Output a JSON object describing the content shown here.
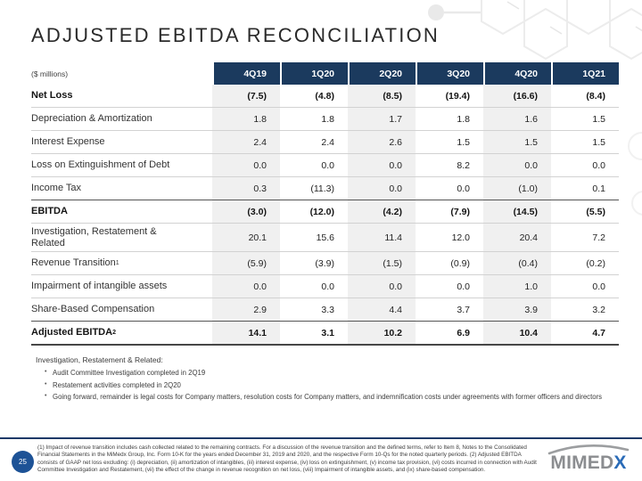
{
  "slide": {
    "title": "ADJUSTED EBITDA RECONCILIATION",
    "units_label": "($ millions)",
    "page_number": "25",
    "logo": {
      "text_gray": "MIMED",
      "text_blue": "X"
    },
    "colors": {
      "header_navy": "#1b3a5e",
      "column_stripe": "#f0f0f0",
      "footer_line_navy": "#1e3968",
      "page_circle_blue": "#1d5296",
      "logo_gray": "#8b8d90",
      "logo_blue": "#2b6cb8"
    }
  },
  "table": {
    "columns": [
      "4Q19",
      "1Q20",
      "2Q20",
      "3Q20",
      "4Q20",
      "1Q21"
    ],
    "rows": [
      {
        "label": "Net Loss",
        "bold": true,
        "values": [
          "(7.5)",
          "(4.8)",
          "(8.5)",
          "(19.4)",
          "(16.6)",
          "(8.4)"
        ]
      },
      {
        "label": "Depreciation & Amortization",
        "values": [
          "1.8",
          "1.8",
          "1.7",
          "1.8",
          "1.6",
          "1.5"
        ]
      },
      {
        "label": "Interest Expense",
        "values": [
          "2.4",
          "2.4",
          "2.6",
          "1.5",
          "1.5",
          "1.5"
        ]
      },
      {
        "label": "Loss on Extinguishment of Debt",
        "values": [
          "0.0",
          "0.0",
          "0.0",
          "8.2",
          "0.0",
          "0.0"
        ]
      },
      {
        "label": "Income Tax",
        "values": [
          "0.3",
          "(11.3)",
          "0.0",
          "0.0",
          "(1.0)",
          "0.1"
        ]
      },
      {
        "label": "EBITDA",
        "bold": true,
        "top_dark": true,
        "values": [
          "(3.0)",
          "(12.0)",
          "(4.2)",
          "(7.9)",
          "(14.5)",
          "(5.5)"
        ]
      },
      {
        "label": "Investigation, Restatement & Related",
        "values": [
          "20.1",
          "15.6",
          "11.4",
          "12.0",
          "20.4",
          "7.2"
        ]
      },
      {
        "label": "Revenue Transition",
        "sup": "1",
        "values": [
          "(5.9)",
          "(3.9)",
          "(1.5)",
          "(0.9)",
          "(0.4)",
          "(0.2)"
        ]
      },
      {
        "label": "Impairment of intangible assets",
        "values": [
          "0.0",
          "0.0",
          "0.0",
          "0.0",
          "1.0",
          "0.0"
        ]
      },
      {
        "label": "Share-Based Compensation",
        "values": [
          "2.9",
          "3.3",
          "4.4",
          "3.7",
          "3.9",
          "3.2"
        ]
      },
      {
        "label": "Adjusted EBITDA",
        "sup": "2",
        "bold": true,
        "top_dark": true,
        "bottom_dark": true,
        "values": [
          "14.1",
          "3.1",
          "10.2",
          "6.9",
          "10.4",
          "4.7"
        ]
      }
    ]
  },
  "notes": {
    "heading": "Investigation, Restatement & Related:",
    "bullets": [
      "Audit Committee Investigation completed in 2Q19",
      "Restatement activities completed in 2Q20",
      "Going forward, remainder is legal costs for Company matters, resolution costs for Company matters, and indemnification costs under agreements with former officers and directors"
    ]
  },
  "footer": {
    "disclaimer": "(1) Impact of revenue transition includes cash collected related to the remaining contracts. For a discussion of the revenue transition and the defined terms, refer to Item 8, Notes to the Consolidated Financial Statements in the MiMedx Group, Inc. Form 10-K for the years ended December 31, 2019 and 2020, and the respective Form 10-Qs for the noted quarterly periods. (2) Adjusted EBITDA consists of GAAP net loss excluding: (i) depreciation, (ii) amortization of intangibles, (iii) interest expense, (iv) loss on extinguishment, (v) income tax provision, (vi) costs incurred in connection with Audit Committee Investigation and Restatement, (vii) the effect of the change in revenue recognition on net loss, (viii) Impairment of intangible assets, and (ix) share-based compensation."
  },
  "chart_data": {
    "type": "table",
    "title": "ADJUSTED EBITDA RECONCILIATION",
    "units": "$ millions",
    "columns": [
      "4Q19",
      "1Q20",
      "2Q20",
      "3Q20",
      "4Q20",
      "1Q21"
    ],
    "rows": [
      {
        "label": "Net Loss",
        "values": [
          -7.5,
          -4.8,
          -8.5,
          -19.4,
          -16.6,
          -8.4
        ]
      },
      {
        "label": "Depreciation & Amortization",
        "values": [
          1.8,
          1.8,
          1.7,
          1.8,
          1.6,
          1.5
        ]
      },
      {
        "label": "Interest Expense",
        "values": [
          2.4,
          2.4,
          2.6,
          1.5,
          1.5,
          1.5
        ]
      },
      {
        "label": "Loss on Extinguishment of Debt",
        "values": [
          0.0,
          0.0,
          0.0,
          8.2,
          0.0,
          0.0
        ]
      },
      {
        "label": "Income Tax",
        "values": [
          0.3,
          -11.3,
          0.0,
          0.0,
          -1.0,
          0.1
        ]
      },
      {
        "label": "EBITDA",
        "values": [
          -3.0,
          -12.0,
          -4.2,
          -7.9,
          -14.5,
          -5.5
        ]
      },
      {
        "label": "Investigation, Restatement & Related",
        "values": [
          20.1,
          15.6,
          11.4,
          12.0,
          20.4,
          7.2
        ]
      },
      {
        "label": "Revenue Transition (1)",
        "values": [
          -5.9,
          -3.9,
          -1.5,
          -0.9,
          -0.4,
          -0.2
        ]
      },
      {
        "label": "Impairment of intangible assets",
        "values": [
          0.0,
          0.0,
          0.0,
          0.0,
          1.0,
          0.0
        ]
      },
      {
        "label": "Share-Based Compensation",
        "values": [
          2.9,
          3.3,
          4.4,
          3.7,
          3.9,
          3.2
        ]
      },
      {
        "label": "Adjusted EBITDA (2)",
        "values": [
          14.1,
          3.1,
          10.2,
          6.9,
          10.4,
          4.7
        ]
      }
    ]
  }
}
